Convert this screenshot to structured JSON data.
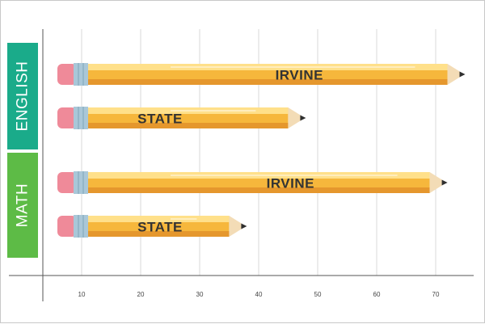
{
  "chart_data": {
    "type": "bar",
    "orientation": "horizontal",
    "title": "",
    "xlabel": "",
    "ylabel": "",
    "xlim": [
      6,
      78
    ],
    "x_ticks": [
      10,
      20,
      30,
      40,
      50,
      60,
      70
    ],
    "grid": true,
    "groups": [
      {
        "name": "ENGLISH",
        "color": "#1aab8a",
        "bars": [
          {
            "label": "IRVINE",
            "value": 75
          },
          {
            "label": "STATE",
            "value": 48
          }
        ]
      },
      {
        "name": "MATH",
        "color": "#5dbb46",
        "bars": [
          {
            "label": "IRVINE",
            "value": 72
          },
          {
            "label": "STATE",
            "value": 38
          }
        ]
      }
    ],
    "colors": {
      "pencil_body": "#f6b73c",
      "pencil_highlight": "#ffe08a",
      "pencil_shadow": "#e5972d",
      "eraser": "#ef8a99",
      "ferrule": "#a9c7d8",
      "wood": "#f3dcb6",
      "lead": "#2f2f2f",
      "grid": "#d9d9d9",
      "axis": "#555555"
    }
  }
}
